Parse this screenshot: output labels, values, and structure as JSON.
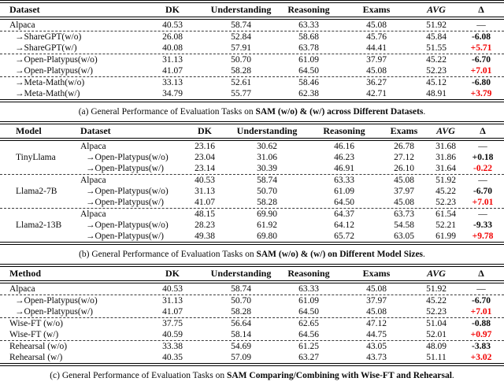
{
  "colors": {
    "delta_positive_red": "#f20000",
    "delta_negative_black": "#0a0a0a",
    "rule": "#000000"
  },
  "tables": [
    {
      "name": "a-datasets",
      "header": {
        "label_col": "Dataset",
        "cols": [
          "DK",
          "Understanding",
          "Reasoning",
          "Exams",
          "AVG",
          "Δ"
        ]
      },
      "groups": [
        {
          "rows": [
            {
              "label": "Alpaca",
              "indent": false,
              "values": [
                "40.53",
                "58.74",
                "63.33",
                "45.08",
                "51.92"
              ],
              "delta": "—",
              "delta_color": "plain"
            }
          ]
        },
        {
          "rows": [
            {
              "label": "→ShareGPT(w/o)",
              "indent": true,
              "values": [
                "26.08",
                "52.84",
                "58.68",
                "45.76",
                "45.84"
              ],
              "delta": "-6.08",
              "delta_color": "black"
            },
            {
              "label": "→ShareGPT(w/)",
              "indent": true,
              "values": [
                "40.08",
                "57.91",
                "63.78",
                "44.41",
                "51.55"
              ],
              "delta": "+5.71",
              "delta_color": "red"
            }
          ]
        },
        {
          "rows": [
            {
              "label": "→Open-Platypus(w/o)",
              "indent": true,
              "values": [
                "31.13",
                "50.70",
                "61.09",
                "37.97",
                "45.22"
              ],
              "delta": "-6.70",
              "delta_color": "black"
            },
            {
              "label": "→Open-Platypus(w/)",
              "indent": true,
              "values": [
                "41.07",
                "58.28",
                "64.50",
                "45.08",
                "52.23"
              ],
              "delta": "+7.01",
              "delta_color": "red"
            }
          ]
        },
        {
          "rows": [
            {
              "label": "→Meta-Math(w/o)",
              "indent": true,
              "values": [
                "33.13",
                "52.61",
                "58.46",
                "36.27",
                "45.12"
              ],
              "delta": "-6.80",
              "delta_color": "black"
            },
            {
              "label": "→Meta-Math(w/)",
              "indent": true,
              "values": [
                "34.79",
                "55.77",
                "62.38",
                "42.71",
                "48.91"
              ],
              "delta": "+3.79",
              "delta_color": "red"
            }
          ]
        }
      ],
      "caption": {
        "prefix": "(a) General Performance of Evaluation Tasks on ",
        "bold": "SAM (w/o) & (w/) across Different Datasets",
        "suffix": "."
      }
    },
    {
      "name": "b-model-sizes",
      "header": {
        "model_col": "Model",
        "label_col": "Dataset",
        "cols": [
          "DK",
          "Understanding",
          "Reasoning",
          "Exams",
          "AVG",
          "Δ"
        ]
      },
      "groups": [
        {
          "model": "TinyLlama",
          "rows": [
            {
              "label": "Alpaca",
              "indent": false,
              "values": [
                "23.16",
                "30.62",
                "46.16",
                "26.78",
                "31.68"
              ],
              "delta": "—",
              "delta_color": "plain"
            },
            {
              "label": "→Open-Platypus(w/o)",
              "indent": true,
              "values": [
                "23.04",
                "31.06",
                "46.23",
                "27.12",
                "31.86"
              ],
              "delta": "+0.18",
              "delta_color": "black"
            },
            {
              "label": "→Open-Platypus(w/)",
              "indent": true,
              "values": [
                "23.14",
                "30.39",
                "46.91",
                "26.10",
                "31.64"
              ],
              "delta": "-0.22",
              "delta_color": "red"
            }
          ]
        },
        {
          "model": "Llama2-7B",
          "rows": [
            {
              "label": "Alpaca",
              "indent": false,
              "values": [
                "40.53",
                "58.74",
                "63.33",
                "45.08",
                "51.92"
              ],
              "delta": "—",
              "delta_color": "plain"
            },
            {
              "label": "→Open-Platypus(w/o)",
              "indent": true,
              "values": [
                "31.13",
                "50.70",
                "61.09",
                "37.97",
                "45.22"
              ],
              "delta": "-6.70",
              "delta_color": "black"
            },
            {
              "label": "→Open-Platypus(w/)",
              "indent": true,
              "values": [
                "41.07",
                "58.28",
                "64.50",
                "45.08",
                "52.23"
              ],
              "delta": "+7.01",
              "delta_color": "red"
            }
          ]
        },
        {
          "model": "Llama2-13B",
          "rows": [
            {
              "label": "Alpaca",
              "indent": false,
              "values": [
                "48.15",
                "69.90",
                "64.37",
                "63.73",
                "61.54"
              ],
              "delta": "—",
              "delta_color": "plain"
            },
            {
              "label": "→Open-Platypus(w/o)",
              "indent": true,
              "values": [
                "28.23",
                "61.92",
                "64.12",
                "54.58",
                "52.21"
              ],
              "delta": "-9.33",
              "delta_color": "black"
            },
            {
              "label": "→Open-Platypus(w/)",
              "indent": true,
              "values": [
                "49.38",
                "69.80",
                "65.72",
                "63.05",
                "61.99"
              ],
              "delta": "+9.78",
              "delta_color": "red"
            }
          ]
        }
      ],
      "caption": {
        "prefix": "(b) General Performance of Evaluation Tasks on ",
        "bold": "SAM (w/o) & (w/) on Different Model Sizes",
        "suffix": "."
      }
    },
    {
      "name": "c-methods",
      "header": {
        "label_col": "Method",
        "cols": [
          "DK",
          "Understanding",
          "Reasoning",
          "Exams",
          "AVG",
          "Δ"
        ]
      },
      "groups": [
        {
          "rows": [
            {
              "label": "Alpaca",
              "indent": false,
              "values": [
                "40.53",
                "58.74",
                "63.33",
                "45.08",
                "51.92"
              ],
              "delta": "—",
              "delta_color": "plain"
            }
          ]
        },
        {
          "rows": [
            {
              "label": "→Open-Platypus(w/o)",
              "indent": true,
              "values": [
                "31.13",
                "50.70",
                "61.09",
                "37.97",
                "45.22"
              ],
              "delta": "-6.70",
              "delta_color": "black"
            },
            {
              "label": "→Open-Platypus(w/)",
              "indent": true,
              "values": [
                "41.07",
                "58.28",
                "64.50",
                "45.08",
                "52.23"
              ],
              "delta": "+7.01",
              "delta_color": "red"
            }
          ]
        },
        {
          "rows": [
            {
              "label": "Wise-FT (w/o)",
              "indent": false,
              "values": [
                "37.75",
                "56.64",
                "62.65",
                "47.12",
                "51.04"
              ],
              "delta": "-0.88",
              "delta_color": "black"
            },
            {
              "label": "Wise-FT (w/)",
              "indent": false,
              "values": [
                "40.59",
                "58.14",
                "64.56",
                "44.75",
                "52.01"
              ],
              "delta": "+0.97",
              "delta_color": "red"
            }
          ]
        },
        {
          "rows": [
            {
              "label": "Rehearsal (w/o)",
              "indent": false,
              "values": [
                "33.38",
                "54.69",
                "61.25",
                "43.05",
                "48.09"
              ],
              "delta": "-3.83",
              "delta_color": "black"
            },
            {
              "label": "Rehearsal (w/)",
              "indent": false,
              "values": [
                "40.35",
                "57.09",
                "63.27",
                "43.73",
                "51.11"
              ],
              "delta": "+3.02",
              "delta_color": "red"
            }
          ]
        }
      ],
      "caption": {
        "prefix": "(c) General Performance of Evaluation Tasks on ",
        "bold": "SAM Comparing/Combining with Wise-FT and Rehearsal",
        "suffix": "."
      }
    }
  ]
}
